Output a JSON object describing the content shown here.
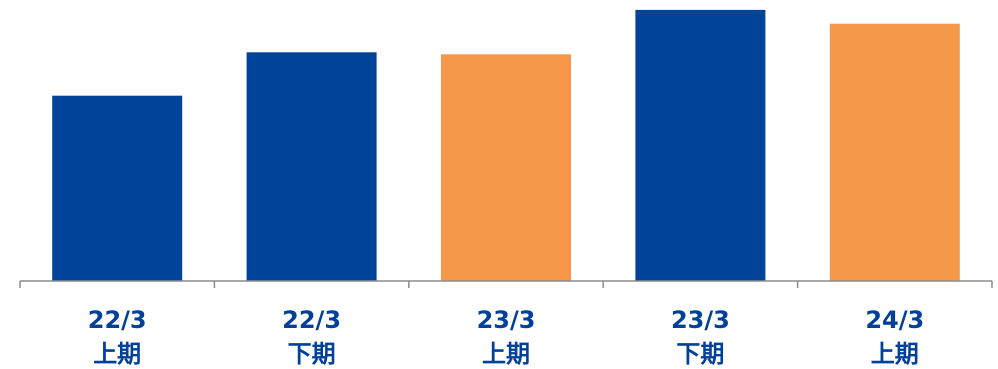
{
  "chart_data": {
    "type": "bar",
    "categories": [
      {
        "line1": "22/3",
        "line2": "上期"
      },
      {
        "line1": "22/3",
        "line2": "下期"
      },
      {
        "line1": "23/3",
        "line2": "上期"
      },
      {
        "line1": "23/3",
        "line2": "下期"
      },
      {
        "line1": "24/3",
        "line2": "上期"
      }
    ],
    "values": [
      188,
      232,
      230,
      275,
      261
    ],
    "bar_colors": [
      "#00449a",
      "#00449a",
      "#f5984a",
      "#00449a",
      "#f5984a"
    ],
    "ylim": [
      0,
      280
    ],
    "title": "",
    "xlabel": "",
    "ylabel": "",
    "grid": false,
    "axis_color": "#8c8c8c",
    "label_color": "#004098"
  }
}
